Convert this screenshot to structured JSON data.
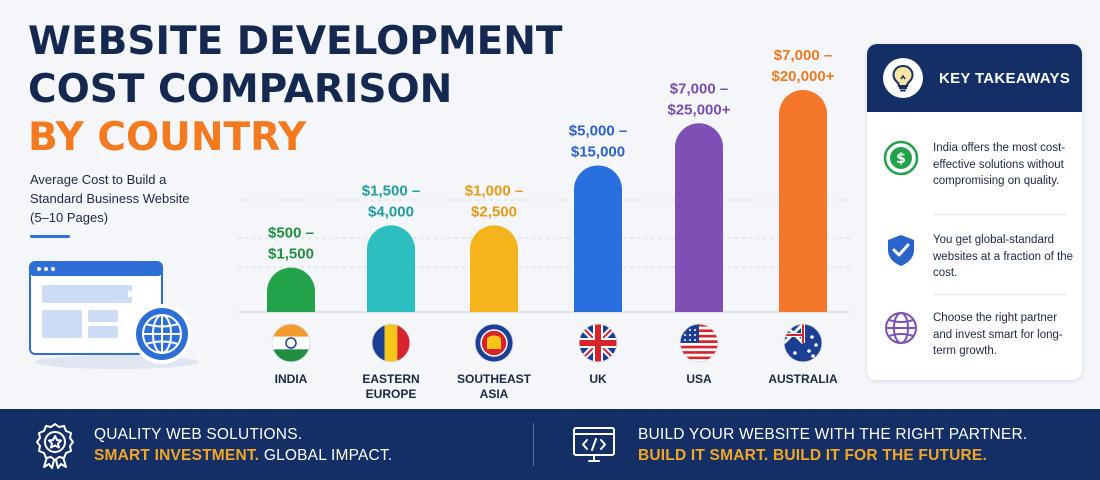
{
  "header": {
    "title_line1": "WEBSITE DEVELOPMENT",
    "title_line2": "COST COMPARISON",
    "title_line3": "BY COUNTRY",
    "subtitle_line1": "Average Cost to Build a",
    "subtitle_line2": "Standard Business Website",
    "subtitle_line3": "(5–10 Pages)"
  },
  "colors": {
    "navy": "#142f66",
    "orange_accent": "#f47a1f",
    "green": "#22a34a",
    "teal": "#2cbfbf",
    "yellow": "#f5b31c",
    "blue": "#2a6fe0",
    "purple": "#7f4fb6",
    "orange": "#f4772a"
  },
  "chart_data": {
    "type": "bar",
    "categories": [
      "INDIA",
      "EASTERN EUROPE",
      "SOUTHEAST ASIA",
      "UK",
      "USA",
      "AUSTRALIA"
    ],
    "category_label_lines": [
      [
        "INDIA"
      ],
      [
        "EASTERN",
        "EUROPE"
      ],
      [
        "SOUTHEAST",
        "ASIA"
      ],
      [
        "UK"
      ],
      [
        "USA"
      ],
      [
        "AUSTRALIA"
      ]
    ],
    "value_labels": [
      [
        "$500 –",
        "$1,500"
      ],
      [
        "$1,500 –",
        "$4,000"
      ],
      [
        "$1,000 –",
        "$2,500"
      ],
      [
        "$5,000 –",
        "$15,000"
      ],
      [
        "$7,000 –",
        "$25,000+"
      ],
      [
        "$7,000 –",
        "$20,000+"
      ]
    ],
    "ranges": [
      [
        500,
        1500
      ],
      [
        1500,
        4000
      ],
      [
        1000,
        2500
      ],
      [
        5000,
        15000
      ],
      [
        7000,
        25000
      ],
      [
        7000,
        20000
      ]
    ],
    "relative_heights": [
      0.2,
      0.39,
      0.39,
      0.66,
      0.85,
      1.0
    ],
    "bar_colors": [
      "#22a34a",
      "#2cbfbf",
      "#f5b31c",
      "#2a6fe0",
      "#7f4fb6",
      "#f4772a"
    ],
    "label_colors": [
      "#1f8f3f",
      "#1f9e9e",
      "#e69b12",
      "#2a63c9",
      "#7a4db0",
      "#f07a1e"
    ],
    "flag_icons": [
      "india-flag-icon",
      "eastern-europe-flag-icon",
      "asean-flag-icon",
      "uk-flag-icon",
      "usa-flag-icon",
      "australia-flag-icon"
    ],
    "gridlines": true,
    "xlabel": "",
    "ylabel": ""
  },
  "takeaways": {
    "title": "KEY TAKEAWAYS",
    "title_icon": "lightbulb-icon",
    "items": [
      {
        "icon": "dollar-circle-icon",
        "text": "India offers the most cost-effective solutions without compromising on quality."
      },
      {
        "icon": "shield-check-icon",
        "text": "You get global-standard websites at a fraction of the cost."
      },
      {
        "icon": "globe-icon",
        "text": "Choose the right partner and invest smart for long-term growth."
      }
    ]
  },
  "footer": {
    "left_icon": "award-badge-icon",
    "left_line1": "QUALITY WEB SOLUTIONS.",
    "left_line2_accent": "SMART INVESTMENT.",
    "left_line2_rest": "GLOBAL IMPACT.",
    "right_icon": "code-monitor-icon",
    "right_line1": "BUILD YOUR WEBSITE WITH THE RIGHT PARTNER.",
    "right_line2_accent": "BUILD IT SMART. BUILD IT FOR THE FUTURE."
  }
}
